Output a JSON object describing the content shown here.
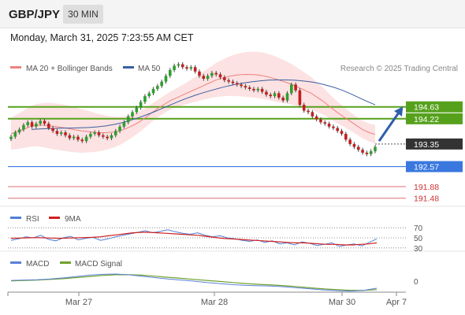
{
  "header": {
    "symbol": "GBP/JPY",
    "timeframe": "30 MIN",
    "timestamp": "Monday, March 31, 2025 7:23:55 AM CET"
  },
  "legend": {
    "ma20": "MA 20 + Bollinger Bands",
    "ma50": "MA 50",
    "credit": "Research © 2025 Trading Central",
    "rsi": "RSI",
    "rsi_ma": "9MA",
    "macd": "MACD",
    "macd_signal": "MACD Signal"
  },
  "colors": {
    "ma20": "#f08080",
    "ma50": "#3a5fa0",
    "bb_fill": "#fbd6d6",
    "bull": "#2e9e2e",
    "bear": "#c02020",
    "green_levels": "#56a11c",
    "pivot": "#3a78e0",
    "support": "#e07070",
    "arrow": "#2f5fa8",
    "current": "#333333",
    "rsi": "#4f7fd8",
    "rsi_ma": "#d02020",
    "macd": "#5a80d8",
    "macd_signal": "#6fa12e"
  },
  "chart_data": [
    {
      "panel": "price",
      "type": "candlestick",
      "ylim": [
        191.2,
        195.6
      ],
      "x_ticks": [
        "Mar 27",
        "Mar 28",
        "Mar 30",
        "Apr 7"
      ],
      "levels": [
        {
          "value": 194.63,
          "label": "194.63",
          "kind": "resistance"
        },
        {
          "value": 194.22,
          "label": "194.22",
          "kind": "resistance"
        },
        {
          "value": 193.35,
          "label": "193.35",
          "kind": "current"
        },
        {
          "value": 192.57,
          "label": "192.57",
          "kind": "pivot"
        },
        {
          "value": 191.88,
          "label": "191.88",
          "kind": "support"
        },
        {
          "value": 191.48,
          "label": "191.48",
          "kind": "support"
        }
      ],
      "closes": [
        193.6,
        193.75,
        193.85,
        194.0,
        194.1,
        193.95,
        194.05,
        194.15,
        194.05,
        193.9,
        193.8,
        193.7,
        193.75,
        193.65,
        193.55,
        193.6,
        193.5,
        193.45,
        193.6,
        193.7,
        193.75,
        193.65,
        193.6,
        193.55,
        193.65,
        193.8,
        193.95,
        194.1,
        194.3,
        194.45,
        194.6,
        194.8,
        195.0,
        195.1,
        195.25,
        195.35,
        195.5,
        195.7,
        195.9,
        196.05,
        196.1,
        196.0,
        195.95,
        196.0,
        195.85,
        195.7,
        195.6,
        195.7,
        195.8,
        195.75,
        195.65,
        195.55,
        195.5,
        195.45,
        195.4,
        195.35,
        195.3,
        195.25,
        195.2,
        195.25,
        195.15,
        195.05,
        195.0,
        195.1,
        194.95,
        194.85,
        195.1,
        195.4,
        195.2,
        194.7,
        194.5,
        194.45,
        194.3,
        194.2,
        194.1,
        194.05,
        193.95,
        193.9,
        193.8,
        193.7,
        193.5,
        193.35,
        193.25,
        193.15,
        193.05,
        193.0,
        193.1,
        193.25
      ],
      "series": [
        {
          "name": "MA 20",
          "values": [
            193.7,
            193.78,
            193.86,
            193.95,
            194.0,
            194.0,
            193.98,
            193.95,
            193.92,
            193.88,
            193.84,
            193.8,
            193.78,
            193.75,
            193.74,
            193.74,
            193.76,
            193.8,
            193.88,
            193.98,
            194.1,
            194.25,
            194.42,
            194.58,
            194.72,
            194.85,
            194.95,
            195.05,
            195.15,
            195.25,
            195.35,
            195.45,
            195.55,
            195.62,
            195.68,
            195.72,
            195.74,
            195.75,
            195.74,
            195.72,
            195.68,
            195.62,
            195.55,
            195.48,
            195.4,
            195.3,
            195.2,
            195.1,
            194.95,
            194.8,
            194.62,
            194.45,
            194.3,
            194.15,
            194.0,
            193.85,
            193.75,
            193.68
          ]
        },
        {
          "name": "MA 50",
          "values": [
            193.85,
            193.87,
            193.88,
            193.89,
            193.9,
            193.9,
            193.91,
            193.92,
            193.94,
            193.97,
            194.02,
            194.08,
            194.16,
            194.25,
            194.35,
            194.46,
            194.58,
            194.7,
            194.82,
            194.93,
            195.03,
            195.12,
            195.2,
            195.28,
            195.35,
            195.41,
            195.46,
            195.5,
            195.53,
            195.55,
            195.56,
            195.56,
            195.55,
            195.53,
            195.5,
            195.45,
            195.38,
            195.3,
            195.2,
            195.08,
            194.95,
            194.82,
            194.7
          ]
        }
      ]
    },
    {
      "panel": "rsi",
      "type": "line",
      "ylim": [
        25,
        75
      ],
      "y_ticks": [
        "70",
        "50",
        "30"
      ],
      "series": [
        {
          "name": "RSI",
          "values": [
            45,
            48,
            52,
            50,
            55,
            47,
            44,
            50,
            53,
            46,
            49,
            51,
            45,
            48,
            52,
            55,
            58,
            61,
            64,
            60,
            63,
            66,
            62,
            59,
            57,
            60,
            55,
            52,
            54,
            50,
            48,
            45,
            43,
            46,
            41,
            44,
            38,
            40,
            36,
            42,
            39,
            35,
            37,
            40,
            33,
            36,
            38,
            34,
            41,
            48
          ]
        },
        {
          "name": "9MA",
          "values": [
            49,
            49.5,
            50,
            50.5,
            50,
            49.5,
            49,
            49.5,
            50,
            50.5,
            51,
            52,
            54,
            56,
            58,
            60,
            61,
            61,
            60,
            59,
            58,
            57,
            56,
            55,
            53,
            51,
            49,
            48,
            47,
            46,
            45,
            44,
            43,
            42,
            41,
            40,
            40,
            39,
            38,
            37,
            37,
            36,
            36,
            37,
            38,
            40
          ]
        }
      ]
    },
    {
      "panel": "macd",
      "type": "line",
      "y_ticks": [
        "0"
      ],
      "series": [
        {
          "name": "MACD",
          "values": [
            0.02,
            0.03,
            0.04,
            0.06,
            0.09,
            0.13,
            0.17,
            0.19,
            0.2,
            0.18,
            0.14,
            0.1,
            0.06,
            0.03,
            0.0,
            -0.04,
            -0.07,
            -0.1,
            -0.12,
            -0.13,
            -0.14,
            -0.16,
            -0.19,
            -0.22,
            -0.25,
            -0.27,
            -0.28,
            -0.26,
            -0.2
          ]
        },
        {
          "name": "MACD Signal",
          "values": [
            0.01,
            0.02,
            0.03,
            0.05,
            0.07,
            0.1,
            0.13,
            0.16,
            0.18,
            0.18,
            0.17,
            0.14,
            0.11,
            0.08,
            0.05,
            0.02,
            -0.01,
            -0.04,
            -0.07,
            -0.09,
            -0.11,
            -0.13,
            -0.16,
            -0.19,
            -0.22,
            -0.24,
            -0.26,
            -0.26,
            -0.24
          ]
        }
      ]
    }
  ]
}
